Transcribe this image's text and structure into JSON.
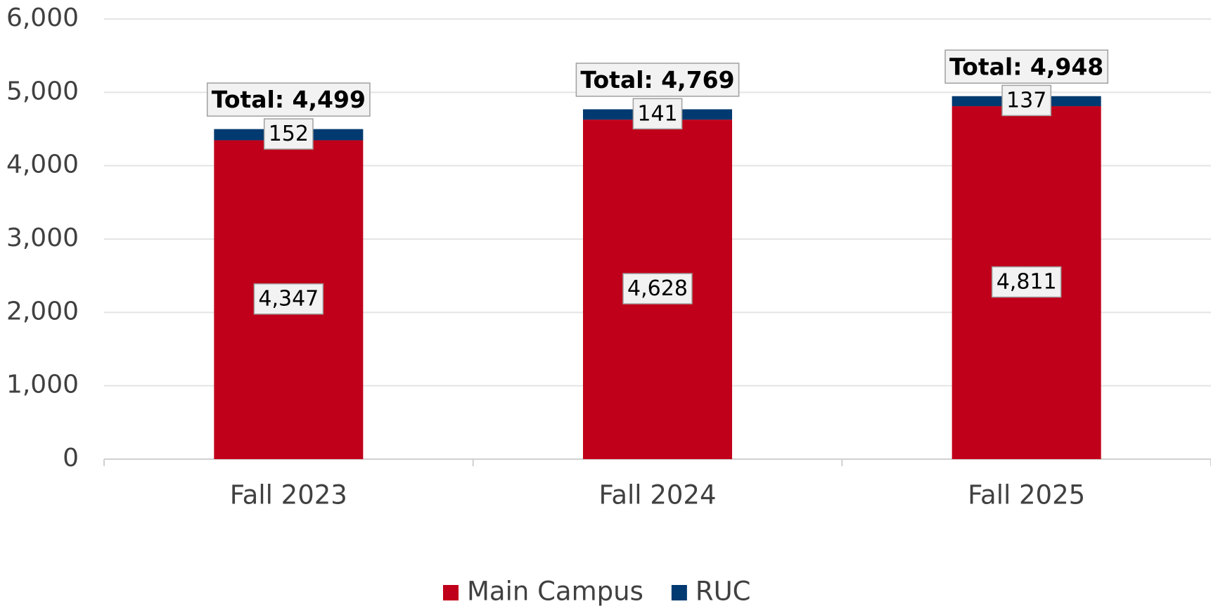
{
  "chart_data": {
    "type": "stacked_bar",
    "categories": [
      "Fall 2023",
      "Fall 2024",
      "Fall 2025"
    ],
    "series": [
      {
        "name": "Main Campus",
        "color": "#c0001a",
        "values": [
          4347,
          4628,
          4811
        ],
        "value_labels": [
          "4,347",
          "4,628",
          "4,811"
        ]
      },
      {
        "name": "RUC",
        "color": "#003a70",
        "values": [
          152,
          141,
          137
        ]
      }
    ],
    "total_labels": [
      "Total: 4,499",
      "Total: 4,769",
      "Total: 4,948"
    ],
    "ylim": [
      0,
      6000
    ],
    "yticks": [
      0,
      {
        "value": 1000,
        "label": "1,000"
      },
      {
        "value": 2000,
        "label": "2,000"
      },
      {
        "value": 3000,
        "label": "3,000"
      },
      {
        "value": 4000,
        "label": "4,000"
      },
      {
        "value": 5000,
        "label": "5,000"
      },
      {
        "value": 6000,
        "label": "6,000"
      }
    ],
    "grid": true,
    "legend": "bottom"
  }
}
